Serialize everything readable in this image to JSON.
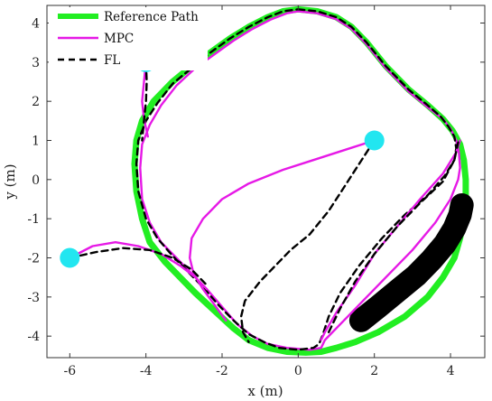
{
  "chart_data": {
    "type": "line",
    "title": "",
    "xlabel": "x (m)",
    "ylabel": "y (m)",
    "xlim": [
      -6.6,
      4.9
    ],
    "ylim": [
      -4.55,
      4.45
    ],
    "xticks": [
      -6,
      -4,
      -2,
      0,
      2,
      4
    ],
    "xtick_labels": [
      "-6",
      "-4",
      "-2",
      "0",
      "2",
      "4"
    ],
    "yticks": [
      -4,
      -3,
      -2,
      -1,
      0,
      1,
      2,
      3,
      4
    ],
    "ytick_labels": [
      "-4",
      "-3",
      "-2",
      "-1",
      "0",
      "1",
      "2",
      "3",
      "4"
    ],
    "grid": false,
    "legend_position": "top-left",
    "legend": [
      {
        "label": "Reference Path",
        "color": "#22ee22",
        "style": "solid-thick"
      },
      {
        "label": "MPC",
        "color": "#e619e6",
        "style": "solid"
      },
      {
        "label": "FL",
        "color": "#000000",
        "style": "dashed"
      }
    ],
    "reference_path": {
      "name": "Reference Path",
      "color": "#22ee22",
      "x": [
        0.0,
        0.5,
        1.0,
        1.4,
        1.8,
        2.3,
        2.9,
        3.4,
        3.8,
        4.05,
        4.25,
        4.35,
        4.4,
        4.4,
        4.35,
        4.25,
        4.1,
        3.8,
        3.4,
        2.8,
        2.1,
        1.5,
        1.0,
        0.6,
        0.2,
        -0.3,
        -0.8,
        -1.3,
        -1.7,
        -2.2,
        -2.7,
        -3.1,
        -3.5,
        -3.9,
        -4.1,
        -4.25,
        -4.3,
        -4.25,
        -4.1,
        -3.8,
        -3.3,
        -2.8,
        -2.3,
        -1.8,
        -1.3,
        -0.8,
        -0.4,
        0.0
      ],
      "y": [
        4.35,
        4.3,
        4.15,
        3.9,
        3.5,
        2.9,
        2.3,
        1.9,
        1.55,
        1.25,
        0.9,
        0.5,
        0.0,
        -0.5,
        -1.0,
        -1.5,
        -2.0,
        -2.5,
        -3.0,
        -3.5,
        -3.9,
        -4.15,
        -4.3,
        -4.4,
        -4.42,
        -4.4,
        -4.3,
        -4.1,
        -3.8,
        -3.35,
        -2.9,
        -2.5,
        -2.1,
        -1.6,
        -1.0,
        -0.3,
        0.4,
        1.0,
        1.5,
        2.0,
        2.5,
        2.9,
        3.25,
        3.6,
        3.9,
        4.15,
        4.3,
        4.35
      ]
    },
    "obstacle": {
      "color": "#000000",
      "x": [
        1.65,
        2.1,
        2.6,
        3.1,
        3.5,
        3.85,
        4.1,
        4.25,
        4.3
      ],
      "y": [
        -3.6,
        -3.25,
        -2.85,
        -2.45,
        -2.05,
        -1.65,
        -1.25,
        -0.9,
        -0.65
      ]
    },
    "start_points": {
      "color": "#22e6f0",
      "x": [
        -4.0,
        2.0,
        -6.0
      ],
      "y": [
        3.0,
        1.0,
        -2.0
      ]
    },
    "series": [
      {
        "name": "MPC",
        "color": "#e619e6",
        "x": [
          0.0,
          0.5,
          1.0,
          1.4,
          1.8,
          2.3,
          2.9,
          3.4,
          3.8,
          4.0,
          4.15,
          4.22,
          4.25,
          4.2,
          4.0,
          3.6,
          3.0,
          2.3,
          1.7,
          1.2,
          0.85,
          0.7,
          0.65,
          0.6,
          0.3,
          -0.3,
          -0.8,
          -1.2,
          -1.6,
          -2.0,
          -2.4,
          -2.8,
          -3.2,
          -3.6,
          -3.9,
          -4.1,
          -4.15,
          -4.1,
          -3.9,
          -3.6,
          -3.2,
          -2.7,
          -2.2,
          -1.7,
          -1.2,
          -0.7,
          -0.3,
          0.0
        ],
        "y": [
          4.3,
          4.25,
          4.1,
          3.85,
          3.45,
          2.85,
          2.25,
          1.85,
          1.55,
          1.3,
          1.0,
          0.7,
          0.3,
          0.0,
          -0.5,
          -1.1,
          -1.8,
          -2.5,
          -3.1,
          -3.6,
          -3.95,
          -4.1,
          -4.2,
          -4.3,
          -4.35,
          -4.3,
          -4.2,
          -4.0,
          -3.7,
          -3.25,
          -2.8,
          -2.4,
          -2.0,
          -1.6,
          -1.1,
          -0.5,
          0.3,
          0.9,
          1.4,
          1.9,
          2.4,
          2.85,
          3.2,
          3.55,
          3.85,
          4.1,
          4.25,
          4.3
        ]
      },
      {
        "name": "FL",
        "color": "#000000",
        "x": [
          0.0,
          0.5,
          1.0,
          1.4,
          1.8,
          2.3,
          2.9,
          3.4,
          3.75,
          3.95,
          4.1,
          4.15,
          4.1,
          3.85,
          3.4,
          2.8,
          2.2,
          1.6,
          1.1,
          0.8,
          0.65,
          0.55,
          0.4,
          0.0,
          -0.5,
          -0.9,
          -1.3,
          -1.7,
          -2.1,
          -2.5,
          -2.9,
          -3.3,
          -3.7,
          -4.0,
          -4.2,
          -4.25,
          -4.2,
          -4.0,
          -3.7,
          -3.3,
          -2.8,
          -2.3,
          -1.8,
          -1.3,
          -0.8,
          -0.4,
          0.0
        ],
        "y": [
          4.35,
          4.3,
          4.15,
          3.9,
          3.5,
          2.9,
          2.3,
          1.9,
          1.6,
          1.35,
          1.1,
          0.8,
          0.5,
          0.1,
          -0.4,
          -0.9,
          -1.5,
          -2.2,
          -2.9,
          -3.5,
          -3.95,
          -4.2,
          -4.3,
          -4.35,
          -4.3,
          -4.15,
          -3.95,
          -3.6,
          -3.2,
          -2.75,
          -2.35,
          -1.95,
          -1.5,
          -1.0,
          -0.3,
          0.4,
          1.0,
          1.5,
          1.95,
          2.45,
          2.85,
          3.25,
          3.6,
          3.9,
          4.15,
          4.3,
          4.35
        ]
      },
      {
        "name": "MPC",
        "color": "#e619e6",
        "x": [
          -4.0,
          -4.05,
          -4.1,
          -4.05,
          -3.95
        ],
        "y": [
          3.0,
          2.5,
          2.0,
          1.55,
          1.1
        ]
      },
      {
        "name": "FL",
        "color": "#000000",
        "x": [
          -4.0,
          -3.98,
          -4.0,
          -4.05,
          -4.1
        ],
        "y": [
          3.0,
          2.5,
          2.0,
          1.5,
          1.0
        ]
      },
      {
        "name": "MPC",
        "color": "#e619e6",
        "x": [
          2.0,
          1.2,
          0.4,
          -0.4,
          -1.3,
          -2.0,
          -2.5,
          -2.8,
          -2.85,
          -2.75,
          -2.5,
          -2.2,
          -1.9
        ],
        "y": [
          1.0,
          0.75,
          0.5,
          0.25,
          -0.1,
          -0.5,
          -1.0,
          -1.5,
          -2.0,
          -2.4,
          -2.8,
          -3.2,
          -3.6
        ]
      },
      {
        "name": "FL",
        "color": "#000000",
        "x": [
          2.0,
          1.6,
          1.2,
          0.8,
          0.3,
          -0.2,
          -0.6,
          -1.0,
          -1.4,
          -1.5,
          -1.45,
          -1.3
        ],
        "y": [
          1.0,
          0.4,
          -0.2,
          -0.8,
          -1.4,
          -1.8,
          -2.2,
          -2.6,
          -3.1,
          -3.5,
          -3.9,
          -4.15
        ]
      },
      {
        "name": "MPC",
        "color": "#e619e6",
        "x": [
          -6.0,
          -5.4,
          -4.8,
          -4.2,
          -3.6,
          -3.1,
          -2.7,
          -2.4
        ],
        "y": [
          -2.0,
          -1.7,
          -1.6,
          -1.7,
          -1.9,
          -2.2,
          -2.5,
          -2.8
        ]
      },
      {
        "name": "FL",
        "color": "#000000",
        "x": [
          -6.0,
          -5.3,
          -4.6,
          -3.9,
          -3.3,
          -2.8,
          -2.4
        ],
        "y": [
          -2.0,
          -1.85,
          -1.75,
          -1.8,
          -2.0,
          -2.3,
          -2.7
        ]
      },
      {
        "name": "MPC",
        "color": "#e619e6",
        "x": [
          0.6,
          0.7,
          1.0,
          1.5,
          2.0,
          2.6,
          3.2,
          3.8,
          4.15,
          4.25
        ],
        "y": [
          -4.1,
          -3.9,
          -3.4,
          -2.7,
          -1.9,
          -1.2,
          -0.5,
          0.15,
          0.7,
          1.0
        ]
      },
      {
        "name": "FL",
        "color": "#000000",
        "x": [
          0.8,
          1.1,
          1.5,
          2.0,
          2.6,
          3.2,
          3.8,
          4.1,
          4.2
        ],
        "y": [
          -3.9,
          -3.3,
          -2.6,
          -1.9,
          -1.2,
          -0.6,
          -0.05,
          0.5,
          0.95
        ]
      }
    ]
  }
}
